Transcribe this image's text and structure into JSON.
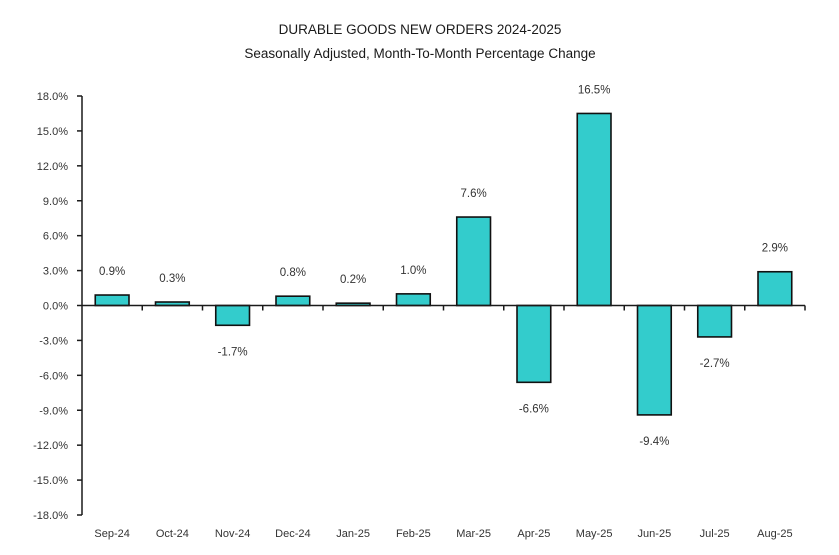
{
  "chart_data": {
    "type": "bar",
    "title": "DURABLE GOODS NEW ORDERS 2024-2025",
    "subtitle": "Seasonally Adjusted,  Month-To-Month Percentage Change",
    "xlabel": "",
    "ylabel": "",
    "categories": [
      "Sep-24",
      "Oct-24",
      "Nov-24",
      "Dec-24",
      "Jan-25",
      "Feb-25",
      "Mar-25",
      "Apr-25",
      "May-25",
      "Jun-25",
      "Jul-25",
      "Aug-25"
    ],
    "values": [
      0.9,
      0.3,
      -1.7,
      0.8,
      0.2,
      1.0,
      7.6,
      -6.6,
      16.5,
      -9.4,
      -2.7,
      2.9
    ],
    "data_labels": [
      "0.9%",
      "0.3%",
      "-1.7%",
      "0.8%",
      "0.2%",
      "1.0%",
      "7.6%",
      "-6.6%",
      "16.5%",
      "-9.4%",
      "-2.7%",
      "2.9%"
    ],
    "ylim": [
      -18,
      18
    ],
    "yticks": [
      18,
      15,
      12,
      9,
      6,
      3,
      0,
      -3,
      -6,
      -9,
      -12,
      -15,
      -18
    ],
    "ytick_labels": [
      "18.0%",
      "15.0%",
      "12.0%",
      "9.0%",
      "6.0%",
      "3.0%",
      "0.0%",
      "-3.0%",
      "-6.0%",
      "-9.0%",
      "-12.0%",
      "-15.0%",
      "-18.0%"
    ],
    "grid": false,
    "legend": "none",
    "bar_color": "#33CCCC",
    "bar_edge_color": "#111111"
  }
}
